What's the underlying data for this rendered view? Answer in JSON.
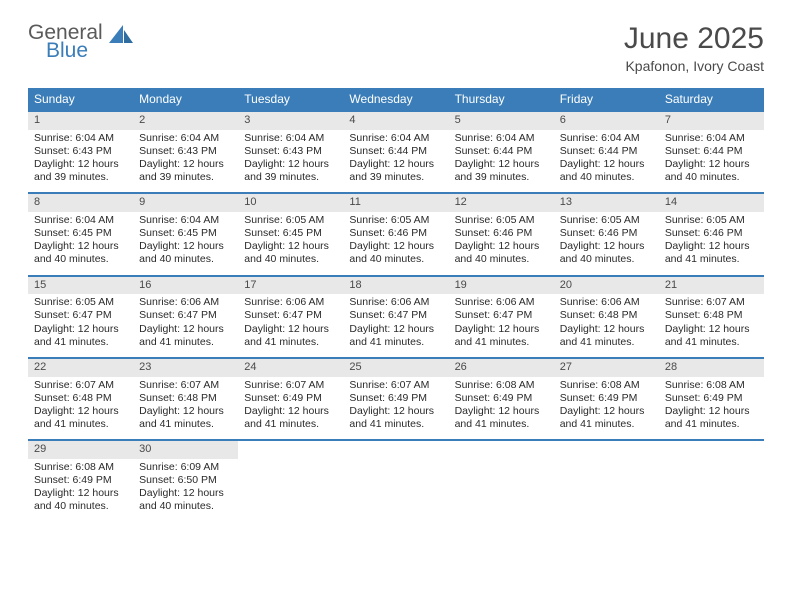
{
  "logo": {
    "word1": "General",
    "word2": "Blue"
  },
  "title": "June 2025",
  "subtitle": "Kpafonon, Ivory Coast",
  "colors": {
    "accent": "#3a7db8",
    "header_bg": "#3a7db8",
    "header_text": "#ffffff",
    "daynum_bg": "#e8e8e8",
    "body_text": "#2a2a2a",
    "title_text": "#4a4a4a",
    "rule": "#3a7db8"
  },
  "day_headers": [
    "Sunday",
    "Monday",
    "Tuesday",
    "Wednesday",
    "Thursday",
    "Friday",
    "Saturday"
  ],
  "weeks": [
    [
      {
        "day": "1",
        "sunrise": "Sunrise: 6:04 AM",
        "sunset": "Sunset: 6:43 PM",
        "dl1": "Daylight: 12 hours",
        "dl2": "and 39 minutes."
      },
      {
        "day": "2",
        "sunrise": "Sunrise: 6:04 AM",
        "sunset": "Sunset: 6:43 PM",
        "dl1": "Daylight: 12 hours",
        "dl2": "and 39 minutes."
      },
      {
        "day": "3",
        "sunrise": "Sunrise: 6:04 AM",
        "sunset": "Sunset: 6:43 PM",
        "dl1": "Daylight: 12 hours",
        "dl2": "and 39 minutes."
      },
      {
        "day": "4",
        "sunrise": "Sunrise: 6:04 AM",
        "sunset": "Sunset: 6:44 PM",
        "dl1": "Daylight: 12 hours",
        "dl2": "and 39 minutes."
      },
      {
        "day": "5",
        "sunrise": "Sunrise: 6:04 AM",
        "sunset": "Sunset: 6:44 PM",
        "dl1": "Daylight: 12 hours",
        "dl2": "and 39 minutes."
      },
      {
        "day": "6",
        "sunrise": "Sunrise: 6:04 AM",
        "sunset": "Sunset: 6:44 PM",
        "dl1": "Daylight: 12 hours",
        "dl2": "and 40 minutes."
      },
      {
        "day": "7",
        "sunrise": "Sunrise: 6:04 AM",
        "sunset": "Sunset: 6:44 PM",
        "dl1": "Daylight: 12 hours",
        "dl2": "and 40 minutes."
      }
    ],
    [
      {
        "day": "8",
        "sunrise": "Sunrise: 6:04 AM",
        "sunset": "Sunset: 6:45 PM",
        "dl1": "Daylight: 12 hours",
        "dl2": "and 40 minutes."
      },
      {
        "day": "9",
        "sunrise": "Sunrise: 6:04 AM",
        "sunset": "Sunset: 6:45 PM",
        "dl1": "Daylight: 12 hours",
        "dl2": "and 40 minutes."
      },
      {
        "day": "10",
        "sunrise": "Sunrise: 6:05 AM",
        "sunset": "Sunset: 6:45 PM",
        "dl1": "Daylight: 12 hours",
        "dl2": "and 40 minutes."
      },
      {
        "day": "11",
        "sunrise": "Sunrise: 6:05 AM",
        "sunset": "Sunset: 6:46 PM",
        "dl1": "Daylight: 12 hours",
        "dl2": "and 40 minutes."
      },
      {
        "day": "12",
        "sunrise": "Sunrise: 6:05 AM",
        "sunset": "Sunset: 6:46 PM",
        "dl1": "Daylight: 12 hours",
        "dl2": "and 40 minutes."
      },
      {
        "day": "13",
        "sunrise": "Sunrise: 6:05 AM",
        "sunset": "Sunset: 6:46 PM",
        "dl1": "Daylight: 12 hours",
        "dl2": "and 40 minutes."
      },
      {
        "day": "14",
        "sunrise": "Sunrise: 6:05 AM",
        "sunset": "Sunset: 6:46 PM",
        "dl1": "Daylight: 12 hours",
        "dl2": "and 41 minutes."
      }
    ],
    [
      {
        "day": "15",
        "sunrise": "Sunrise: 6:05 AM",
        "sunset": "Sunset: 6:47 PM",
        "dl1": "Daylight: 12 hours",
        "dl2": "and 41 minutes."
      },
      {
        "day": "16",
        "sunrise": "Sunrise: 6:06 AM",
        "sunset": "Sunset: 6:47 PM",
        "dl1": "Daylight: 12 hours",
        "dl2": "and 41 minutes."
      },
      {
        "day": "17",
        "sunrise": "Sunrise: 6:06 AM",
        "sunset": "Sunset: 6:47 PM",
        "dl1": "Daylight: 12 hours",
        "dl2": "and 41 minutes."
      },
      {
        "day": "18",
        "sunrise": "Sunrise: 6:06 AM",
        "sunset": "Sunset: 6:47 PM",
        "dl1": "Daylight: 12 hours",
        "dl2": "and 41 minutes."
      },
      {
        "day": "19",
        "sunrise": "Sunrise: 6:06 AM",
        "sunset": "Sunset: 6:47 PM",
        "dl1": "Daylight: 12 hours",
        "dl2": "and 41 minutes."
      },
      {
        "day": "20",
        "sunrise": "Sunrise: 6:06 AM",
        "sunset": "Sunset: 6:48 PM",
        "dl1": "Daylight: 12 hours",
        "dl2": "and 41 minutes."
      },
      {
        "day": "21",
        "sunrise": "Sunrise: 6:07 AM",
        "sunset": "Sunset: 6:48 PM",
        "dl1": "Daylight: 12 hours",
        "dl2": "and 41 minutes."
      }
    ],
    [
      {
        "day": "22",
        "sunrise": "Sunrise: 6:07 AM",
        "sunset": "Sunset: 6:48 PM",
        "dl1": "Daylight: 12 hours",
        "dl2": "and 41 minutes."
      },
      {
        "day": "23",
        "sunrise": "Sunrise: 6:07 AM",
        "sunset": "Sunset: 6:48 PM",
        "dl1": "Daylight: 12 hours",
        "dl2": "and 41 minutes."
      },
      {
        "day": "24",
        "sunrise": "Sunrise: 6:07 AM",
        "sunset": "Sunset: 6:49 PM",
        "dl1": "Daylight: 12 hours",
        "dl2": "and 41 minutes."
      },
      {
        "day": "25",
        "sunrise": "Sunrise: 6:07 AM",
        "sunset": "Sunset: 6:49 PM",
        "dl1": "Daylight: 12 hours",
        "dl2": "and 41 minutes."
      },
      {
        "day": "26",
        "sunrise": "Sunrise: 6:08 AM",
        "sunset": "Sunset: 6:49 PM",
        "dl1": "Daylight: 12 hours",
        "dl2": "and 41 minutes."
      },
      {
        "day": "27",
        "sunrise": "Sunrise: 6:08 AM",
        "sunset": "Sunset: 6:49 PM",
        "dl1": "Daylight: 12 hours",
        "dl2": "and 41 minutes."
      },
      {
        "day": "28",
        "sunrise": "Sunrise: 6:08 AM",
        "sunset": "Sunset: 6:49 PM",
        "dl1": "Daylight: 12 hours",
        "dl2": "and 41 minutes."
      }
    ],
    [
      {
        "day": "29",
        "sunrise": "Sunrise: 6:08 AM",
        "sunset": "Sunset: 6:49 PM",
        "dl1": "Daylight: 12 hours",
        "dl2": "and 40 minutes."
      },
      {
        "day": "30",
        "sunrise": "Sunrise: 6:09 AM",
        "sunset": "Sunset: 6:50 PM",
        "dl1": "Daylight: 12 hours",
        "dl2": "and 40 minutes."
      },
      null,
      null,
      null,
      null,
      null
    ]
  ]
}
